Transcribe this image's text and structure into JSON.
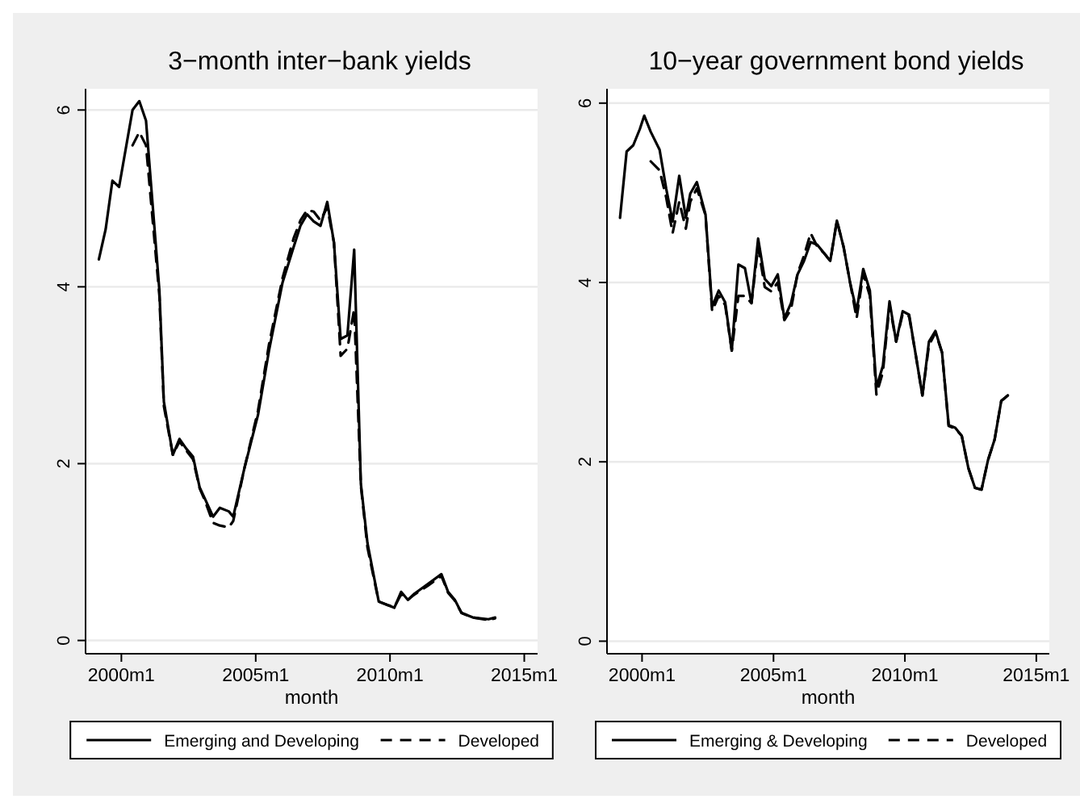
{
  "chart_data": [
    {
      "type": "line",
      "title": "3−month inter−bank yields",
      "xlabel": "month",
      "xlim": [
        "1998-09",
        "2015-07"
      ],
      "ylim": [
        -0.15,
        6.24
      ],
      "xticks": [
        {
          "value": "2000-01",
          "label": "2000m1"
        },
        {
          "value": "2005-01",
          "label": "2005m1"
        },
        {
          "value": "2010-01",
          "label": "2010m1"
        },
        {
          "value": "2015-01",
          "label": "2015m1"
        }
      ],
      "yticks": [
        0,
        2,
        4,
        6
      ],
      "grid": "y",
      "legend": "bottom",
      "series": [
        {
          "name": "Emerging and Developing",
          "color": "#000000",
          "line_style": "solid",
          "x": [
            "1999-03",
            "1999-06",
            "1999-09",
            "1999-12",
            "2000-06",
            "2000-09",
            "2000-12",
            "2001-06",
            "2001-08",
            "2001-12",
            "2002-03",
            "2002-06",
            "2002-09",
            "2002-12",
            "2003-02",
            "2003-06",
            "2003-09",
            "2004-01",
            "2004-03",
            "2004-08",
            "2005-02",
            "2005-07",
            "2006-01",
            "2006-06",
            "2006-09",
            "2006-12",
            "2007-03",
            "2007-06",
            "2007-09",
            "2007-12",
            "2008-03",
            "2008-06",
            "2008-09",
            "2008-12",
            "2009-03",
            "2009-08",
            "2009-12",
            "2010-03",
            "2010-06",
            "2010-09",
            "2010-12",
            "2011-06",
            "2011-12",
            "2012-03",
            "2012-06",
            "2012-09",
            "2013-02",
            "2013-09",
            "2013-12"
          ],
          "values": [
            4.31,
            4.65,
            5.2,
            5.13,
            6.0,
            6.1,
            5.88,
            3.96,
            2.7,
            2.1,
            2.28,
            2.17,
            2.08,
            1.73,
            1.62,
            1.4,
            1.5,
            1.46,
            1.4,
            1.95,
            2.55,
            3.28,
            4.05,
            4.45,
            4.69,
            4.82,
            4.74,
            4.69,
            4.96,
            4.5,
            3.41,
            3.45,
            4.42,
            1.77,
            1.1,
            0.44,
            0.4,
            0.37,
            0.55,
            0.46,
            0.53,
            0.64,
            0.75,
            0.55,
            0.46,
            0.31,
            0.26,
            0.24,
            0.26
          ]
        },
        {
          "name": "Developed",
          "color": "#000000",
          "line_style": "dashed",
          "x": [
            "2000-06",
            "2000-09",
            "2000-12",
            "2001-06",
            "2001-08",
            "2001-12",
            "2002-03",
            "2002-06",
            "2002-09",
            "2002-12",
            "2003-02",
            "2003-06",
            "2003-09",
            "2004-01",
            "2004-03",
            "2004-08",
            "2005-02",
            "2005-07",
            "2006-01",
            "2006-06",
            "2006-09",
            "2006-12",
            "2007-03",
            "2007-06",
            "2007-09",
            "2007-12",
            "2008-03",
            "2008-06",
            "2008-09",
            "2008-12",
            "2009-03",
            "2009-08",
            "2009-12",
            "2010-03",
            "2010-06",
            "2010-09",
            "2010-12",
            "2011-06",
            "2011-12",
            "2012-03",
            "2012-06",
            "2012-09",
            "2013-02",
            "2013-09",
            "2013-12"
          ],
          "values": [
            5.6,
            5.75,
            5.6,
            3.9,
            2.65,
            2.1,
            2.25,
            2.15,
            2.05,
            1.72,
            1.6,
            1.33,
            1.3,
            1.28,
            1.35,
            1.95,
            2.6,
            3.35,
            4.1,
            4.55,
            4.75,
            4.87,
            4.85,
            4.75,
            4.9,
            4.5,
            3.22,
            3.3,
            3.75,
            1.75,
            1.05,
            0.44,
            0.4,
            0.38,
            0.52,
            0.46,
            0.52,
            0.62,
            0.73,
            0.54,
            0.45,
            0.31,
            0.26,
            0.23,
            0.25
          ]
        }
      ]
    },
    {
      "type": "line",
      "title": "10−year government bond yields",
      "xlabel": "month",
      "xlim": [
        "1998-09",
        "2015-07"
      ],
      "ylim": [
        -0.14,
        6.16
      ],
      "xticks": [
        {
          "value": "2000-01",
          "label": "2000m1"
        },
        {
          "value": "2005-01",
          "label": "2005m1"
        },
        {
          "value": "2010-01",
          "label": "2010m1"
        },
        {
          "value": "2015-01",
          "label": "2015m1"
        }
      ],
      "yticks": [
        0,
        2,
        4,
        6
      ],
      "grid": "y",
      "legend": "bottom",
      "series": [
        {
          "name": "Emerging & Developing",
          "color": "#000000",
          "line_style": "solid",
          "x": [
            "1999-03",
            "1999-06",
            "1999-09",
            "1999-12",
            "2000-02",
            "2000-05",
            "2000-09",
            "2000-12",
            "2001-03",
            "2001-06",
            "2001-09",
            "2001-11",
            "2002-02",
            "2002-06",
            "2002-09",
            "2002-12",
            "2003-03",
            "2003-06",
            "2003-09",
            "2003-12",
            "2004-03",
            "2004-06",
            "2004-09",
            "2004-12",
            "2005-03",
            "2005-06",
            "2005-09",
            "2005-12",
            "2006-03",
            "2006-06",
            "2006-09",
            "2006-12",
            "2007-03",
            "2007-06",
            "2007-09",
            "2007-12",
            "2008-03",
            "2008-06",
            "2008-09",
            "2008-12",
            "2009-03",
            "2009-06",
            "2009-09",
            "2009-12",
            "2010-03",
            "2010-06",
            "2010-09",
            "2010-12",
            "2011-03",
            "2011-06",
            "2011-09",
            "2011-12",
            "2012-03",
            "2012-06",
            "2012-09",
            "2012-12",
            "2013-03",
            "2013-06",
            "2013-09",
            "2013-12"
          ],
          "values": [
            4.72,
            5.46,
            5.53,
            5.71,
            5.86,
            5.68,
            5.48,
            5.05,
            4.68,
            5.19,
            4.72,
            4.99,
            5.12,
            4.76,
            3.73,
            3.91,
            3.78,
            3.24,
            4.2,
            4.16,
            3.77,
            4.49,
            4.04,
            3.96,
            4.09,
            3.6,
            3.77,
            4.09,
            4.24,
            4.45,
            4.42,
            4.33,
            4.24,
            4.69,
            4.4,
            4.0,
            3.68,
            4.15,
            3.91,
            2.83,
            3.07,
            3.79,
            3.34,
            3.68,
            3.64,
            3.19,
            2.74,
            3.34,
            3.46,
            3.22,
            2.41,
            2.38,
            2.29,
            1.93,
            1.71,
            1.69,
            2.02,
            2.25,
            2.68,
            2.74
          ]
        },
        {
          "name": "Developed",
          "color": "#000000",
          "line_style": "dashed",
          "x": [
            "2000-05",
            "2000-09",
            "2000-12",
            "2001-03",
            "2001-06",
            "2001-09",
            "2001-11",
            "2002-02",
            "2002-06",
            "2002-09",
            "2002-12",
            "2003-03",
            "2003-06",
            "2003-09",
            "2003-12",
            "2004-03",
            "2004-06",
            "2004-09",
            "2004-12",
            "2005-03",
            "2005-06",
            "2005-09",
            "2005-12",
            "2006-03",
            "2006-06",
            "2006-09",
            "2006-12",
            "2007-03",
            "2007-06",
            "2007-09",
            "2007-12",
            "2008-03",
            "2008-06",
            "2008-09",
            "2008-12",
            "2009-03",
            "2009-06",
            "2009-09",
            "2009-12",
            "2010-03",
            "2010-06",
            "2010-09",
            "2010-12",
            "2011-03",
            "2011-06",
            "2011-09",
            "2011-12",
            "2012-03",
            "2012-06",
            "2012-09",
            "2012-12",
            "2013-03",
            "2013-06",
            "2013-09",
            "2013-12"
          ],
          "values": [
            5.35,
            5.25,
            4.95,
            4.55,
            4.9,
            4.6,
            4.9,
            5.05,
            4.75,
            3.68,
            3.85,
            3.75,
            3.24,
            3.85,
            3.85,
            3.77,
            4.4,
            3.95,
            3.9,
            4.0,
            3.58,
            3.7,
            4.1,
            4.3,
            4.55,
            4.4,
            4.33,
            4.24,
            4.69,
            4.4,
            4.0,
            3.6,
            4.1,
            3.85,
            2.75,
            3.0,
            3.75,
            3.34,
            3.65,
            3.62,
            3.19,
            2.74,
            3.3,
            3.44,
            3.22,
            2.4,
            2.37,
            2.29,
            1.93,
            1.71,
            1.69,
            2.02,
            2.25,
            2.68,
            2.74
          ]
        }
      ]
    }
  ]
}
